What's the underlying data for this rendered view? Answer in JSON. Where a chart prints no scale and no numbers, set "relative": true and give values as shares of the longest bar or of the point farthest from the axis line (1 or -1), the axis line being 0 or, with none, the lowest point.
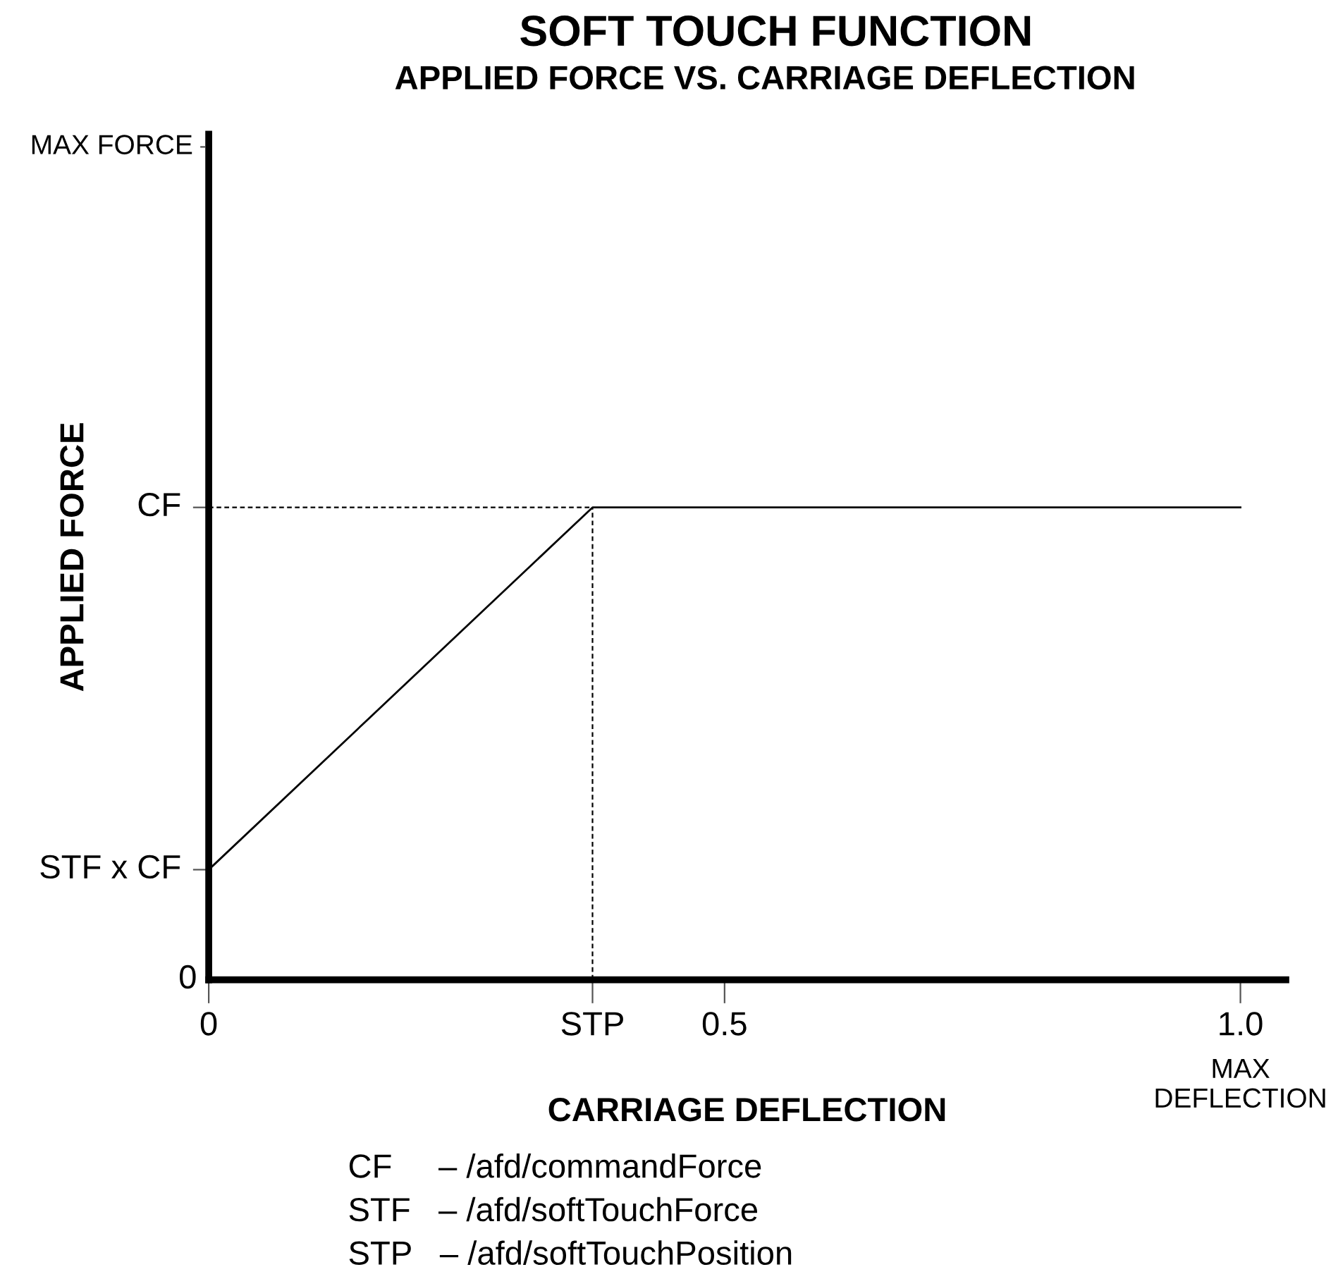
{
  "chart_data": {
    "type": "line",
    "title": "SOFT TOUCH FUNCTION",
    "subtitle": "APPLIED FORCE VS. CARRIAGE DEFLECTION",
    "xlabel": "CARRIAGE DEFLECTION",
    "ylabel": "APPLIED FORCE",
    "relative": true,
    "series": [
      {
        "x": [
          0,
          0.372,
          1.0
        ],
        "values": [
          0.233,
          1,
          1
        ],
        "color": "#000000",
        "line_style": "solid"
      },
      {
        "x": [
          0,
          0.372
        ],
        "values": [
          1,
          1
        ],
        "color": "#000000",
        "line_style": "dashed"
      },
      {
        "x": [
          0.372,
          0.372
        ],
        "values": [
          0,
          1
        ],
        "color": "#000000",
        "line_style": "dashed"
      }
    ],
    "xlim": [
      0,
      1.044
    ],
    "xticks": [
      0,
      {
        "value": 0.372,
        "label": "STP"
      },
      0.5,
      {
        "value": 1.0,
        "label": "1.0"
      }
    ],
    "grid": false,
    "marker": "none",
    "annotations": [
      {
        "text": "STF x CF",
        "x": 0,
        "y": 0.233
      },
      {
        "text": "CF",
        "x": 0,
        "y": 1
      },
      "0",
      "MAX FORCE",
      "MAX\nDEFLECTION",
      "CF     – /afd/commandForce",
      "STF   – /afd/softTouchForce",
      "STP   – /afd/softTouchPosition"
    ]
  }
}
